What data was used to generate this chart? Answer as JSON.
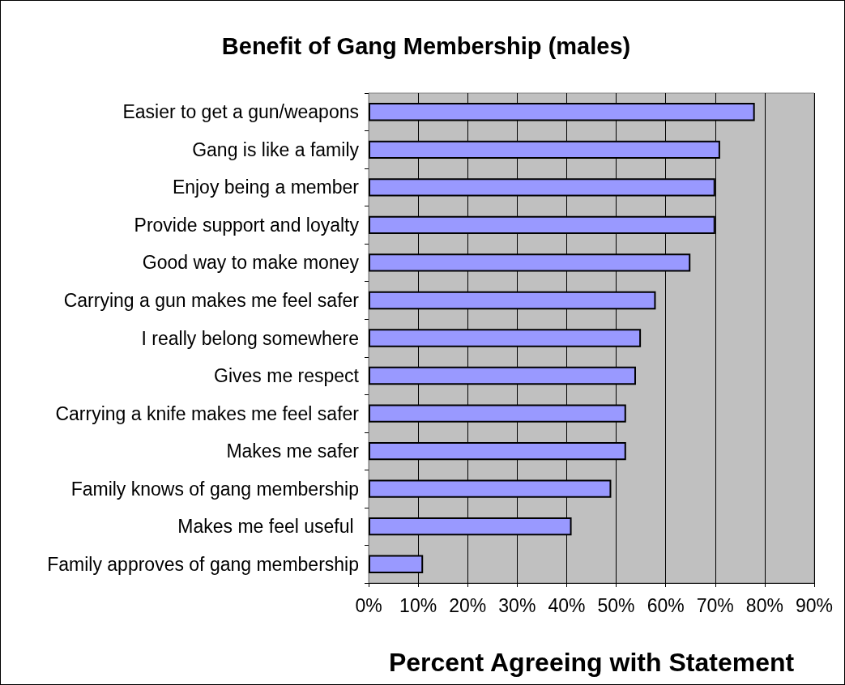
{
  "chart_data": {
    "type": "bar",
    "orientation": "horizontal",
    "title": "Benefit of Gang Membership (males)",
    "xlabel": "Percent Agreeing with Statement",
    "categories": [
      "Easier to get a gun/weapons",
      "Gang is like a family",
      "Enjoy being a member",
      "Provide support and loyalty",
      "Good way to make money",
      "Carrying a gun makes me feel safer",
      "I really belong somewhere",
      "Gives me respect",
      "Carrying a knife makes me feel safer",
      "Makes me safer",
      "Family knows of gang membership",
      "Makes me feel useful ",
      "Family approves of gang membership"
    ],
    "values": [
      78,
      71,
      70,
      70,
      65,
      58,
      55,
      54,
      52,
      52,
      49,
      41,
      11
    ],
    "color": "#9999ff",
    "xlim": [
      0,
      90
    ],
    "xticks": [
      {
        "value": 0,
        "label": "0%"
      },
      {
        "value": 10,
        "label": "10%"
      },
      {
        "value": 20,
        "label": "20%"
      },
      {
        "value": 30,
        "label": "30%"
      },
      {
        "value": 40,
        "label": "40%"
      },
      {
        "value": 50,
        "label": "50%"
      },
      {
        "value": 60,
        "label": "60%"
      },
      {
        "value": 70,
        "label": "70%"
      },
      {
        "value": 80,
        "label": "80%"
      },
      {
        "value": 90,
        "label": "90%"
      }
    ],
    "grid": "x"
  }
}
